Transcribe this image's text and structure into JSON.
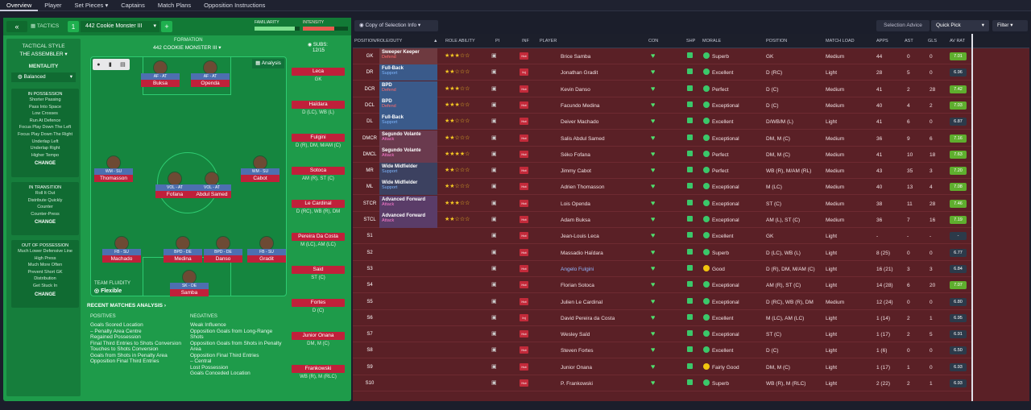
{
  "nav": {
    "items": [
      "Overview",
      "Player",
      "Set Pieces ▾",
      "Captains",
      "Match Plans",
      "Opposition Instructions"
    ]
  },
  "tactic": {
    "label": "TACTICS",
    "slot": "1",
    "name": "442 Cookie Monster III",
    "familiarity": "FAMILIARITY",
    "intensity": "INTENSITY",
    "formation_label": "FORMATION",
    "formation": "442 COOKIE MONSTER III",
    "subs_label": "SUBS:",
    "subs_count": "12/15",
    "analysis": "Analysis",
    "style_label": "TACTICAL STYLE",
    "style": "THE ASSEMBLER",
    "mentality_label": "MENTALITY",
    "mentality": "Balanced",
    "in_possession": {
      "title": "IN POSSESSION",
      "items": [
        "Shorter Passing",
        "Pass Into Space",
        "Low Crosses",
        "Run At Defence",
        "Focus Play Down The Left",
        "Focus Play Down The Right",
        "Underlap Left",
        "Underlap Right",
        "Higher Tempo"
      ],
      "change": "CHANGE"
    },
    "in_transition": {
      "title": "IN TRANSITION",
      "items": [
        "Roll It Out",
        "Distribute Quickly",
        "Counter",
        "Counter-Press"
      ],
      "change": "CHANGE"
    },
    "out_possession": {
      "title": "OUT OF POSSESSION",
      "items": [
        "Much Lower Defensive Line",
        "High Press",
        "Much More Often",
        "Prevent Short GK",
        "Distribution",
        "Get Stuck In"
      ],
      "change": "CHANGE"
    },
    "fluidity_label": "TEAM FLUIDITY",
    "fluidity": "Flexible"
  },
  "pitch_players": [
    {
      "role": "AF - AT",
      "name": "Buksa"
    },
    {
      "role": "AF - AT",
      "name": "Openda"
    },
    {
      "role": "WM - SU",
      "name": "Thomasson"
    },
    {
      "role": "VOL - AT",
      "name": "Fofana"
    },
    {
      "role": "VOL - AT",
      "name": "Abdul Samed"
    },
    {
      "role": "WM - SU",
      "name": "Cabot"
    },
    {
      "role": "FB - SU",
      "name": "Machado"
    },
    {
      "role": "BPD - DE",
      "name": "Medina"
    },
    {
      "role": "BPD - DE",
      "name": "Danso"
    },
    {
      "role": "FB - SU",
      "name": "Gradit"
    },
    {
      "role": "SK - DE",
      "name": "Samba"
    }
  ],
  "subs": [
    {
      "name": "Leca",
      "pos": "GK"
    },
    {
      "name": "Haïdara",
      "pos": "D (LC), WB (L)"
    },
    {
      "name": "Fulgini",
      "pos": "D (R), DM, M/AM (C)"
    },
    {
      "name": "Sotoca",
      "pos": "AM (R), ST (C)"
    },
    {
      "name": "Le Cardinal",
      "pos": "D (RC), WB (R), DM"
    },
    {
      "name": "Pereira Da Costa",
      "pos": "M (LC), AM (LC)"
    },
    {
      "name": "Said",
      "pos": "ST (C)"
    },
    {
      "name": "Fortes",
      "pos": "D (C)"
    },
    {
      "name": "Junior Onana",
      "pos": "DM, M (C)"
    },
    {
      "name": "Frankowski",
      "pos": "WB (R), M (RLC)"
    }
  ],
  "recent": {
    "title": "RECENT MATCHES ANALYSIS ›",
    "pos_label": "POSITIVES",
    "neg_label": "NEGATIVES",
    "positives": [
      "Goals Scored Location",
      "– Penalty Area Centre",
      "Regained Possession",
      "Final Third Entries to Shots Conversion",
      "Touches to Shots Conversion",
      "Goals from Shots in Penalty Area",
      "Opposition Final Third Entries"
    ],
    "negatives": [
      "Weak Influence",
      "Opposition Goals from Long-Range Shots",
      "Opposition Goals from Shots in Penalty Area",
      "Opposition Final Third Entries",
      "– Central",
      "Lost Possession",
      "Goals Conceded Location"
    ]
  },
  "toolbar": {
    "view": "Copy of Selection Info",
    "advice": "Selection Advice",
    "quick": "Quick Pick",
    "filter": "Filter"
  },
  "headers": {
    "pos": "POSITION/ROLE/DUTY",
    "ability": "ROLE ABILITY",
    "pi": "PI",
    "inf": "INF",
    "player": "PLAYER",
    "con": "CON",
    "shp": "SHP",
    "morale": "MORALE",
    "position": "POSITION",
    "load": "MATCH LOAD",
    "apps": "APPS",
    "ast": "AST",
    "gls": "GLS",
    "avrat": "AV RAT"
  },
  "rows": [
    {
      "slot": "GK",
      "role": "Sweeper Keeper",
      "duty": "Defend",
      "stars": 3,
      "player": "Brice Samba",
      "morale": "Superb",
      "position": "GK",
      "load": "Medium",
      "apps": "44",
      "ast": "0",
      "gls": "0",
      "rat": "7.01",
      "hot": "Hot"
    },
    {
      "slot": "DR",
      "role": "Full-Back",
      "duty": "Support",
      "stars": 2,
      "player": "Jonathan Gradit",
      "morale": "Excellent",
      "position": "D (RC)",
      "load": "Light",
      "apps": "28",
      "ast": "5",
      "gls": "0",
      "rat": "6.96",
      "hot": "Inj"
    },
    {
      "slot": "DCR",
      "role": "BPD",
      "duty": "Defend",
      "stars": 3,
      "player": "Kevin Danso",
      "morale": "Perfect",
      "position": "D (C)",
      "load": "Medium",
      "apps": "41",
      "ast": "2",
      "gls": "28",
      "rat": "7.42",
      "hot": "Hot"
    },
    {
      "slot": "DCL",
      "role": "BPD",
      "duty": "Defend",
      "stars": 3,
      "player": "Facundo Medina",
      "morale": "Exceptional",
      "position": "D (C)",
      "load": "Medium",
      "apps": "40",
      "ast": "4",
      "gls": "2",
      "rat": "7.03",
      "hot": "Hot"
    },
    {
      "slot": "DL",
      "role": "Full-Back",
      "duty": "Support",
      "stars": 2,
      "player": "Deiver Machado",
      "morale": "Excellent",
      "position": "D/WB/M (L)",
      "load": "Light",
      "apps": "41",
      "ast": "6",
      "gls": "0",
      "rat": "6.87",
      "hot": "Hot"
    },
    {
      "slot": "DMCR",
      "role": "Segundo Volante",
      "duty": "Attack",
      "stars": 2,
      "player": "Salis Abdul Samed",
      "morale": "Exceptional",
      "position": "DM, M (C)",
      "load": "Medium",
      "apps": "36",
      "ast": "9",
      "gls": "6",
      "rat": "7.16",
      "hot": "Hot"
    },
    {
      "slot": "DMCL",
      "role": "Segundo Volante",
      "duty": "Attack",
      "stars": 4,
      "player": "Séko Fofana",
      "morale": "Perfect",
      "position": "DM, M (C)",
      "load": "Medium",
      "apps": "41",
      "ast": "10",
      "gls": "18",
      "rat": "7.63",
      "hot": "Hot"
    },
    {
      "slot": "MR",
      "role": "Wide Midfielder",
      "duty": "Support",
      "stars": 2,
      "player": "Jimmy Cabot",
      "morale": "Perfect",
      "position": "WB (R), M/AM (RL)",
      "load": "Medium",
      "apps": "43",
      "ast": "35",
      "gls": "3",
      "rat": "7.20",
      "hot": "Hot"
    },
    {
      "slot": "ML",
      "role": "Wide Midfielder",
      "duty": "Support",
      "stars": 2,
      "player": "Adrien Thomasson",
      "morale": "Exceptional",
      "position": "M (LC)",
      "load": "Medium",
      "apps": "40",
      "ast": "13",
      "gls": "4",
      "rat": "7.08",
      "hot": "Hot"
    },
    {
      "slot": "STCR",
      "role": "Advanced Forward",
      "duty": "Attack",
      "stars": 3,
      "player": "Lois Openda",
      "morale": "Exceptional",
      "position": "ST (C)",
      "load": "Medium",
      "apps": "38",
      "ast": "11",
      "gls": "28",
      "rat": "7.46",
      "hot": "Hot"
    },
    {
      "slot": "STCL",
      "role": "Advanced Forward",
      "duty": "Attack",
      "stars": 2,
      "player": "Adam Buksa",
      "morale": "Exceptional",
      "position": "AM (L), ST (C)",
      "load": "Medium",
      "apps": "36",
      "ast": "7",
      "gls": "16",
      "rat": "7.19",
      "hot": "Hot"
    },
    {
      "slot": "S1",
      "role": "",
      "duty": "",
      "stars": 0,
      "player": "Jean-Louis Leca",
      "morale": "Excellent",
      "position": "GK",
      "load": "Light",
      "apps": "-",
      "ast": "-",
      "gls": "-",
      "rat": "-",
      "hot": "Hot"
    },
    {
      "slot": "S2",
      "role": "",
      "duty": "",
      "stars": 0,
      "player": "Massadio Haïdara",
      "morale": "Superb",
      "position": "D (LC), WB (L)",
      "load": "Light",
      "apps": "8 (25)",
      "ast": "0",
      "gls": "0",
      "rat": "6.77",
      "hot": "Hot"
    },
    {
      "slot": "S3",
      "role": "",
      "duty": "",
      "stars": 0,
      "player": "Angelo Fulgini",
      "morale": "Good",
      "position": "D (R), DM, M/AM (C)",
      "load": "Light",
      "apps": "16 (21)",
      "ast": "3",
      "gls": "3",
      "rat": "6.84",
      "hot": "Hot"
    },
    {
      "slot": "S4",
      "role": "",
      "duty": "",
      "stars": 0,
      "player": "Florian Sotoca",
      "morale": "Exceptional",
      "position": "AM (R), ST (C)",
      "load": "Light",
      "apps": "14 (28)",
      "ast": "6",
      "gls": "20",
      "rat": "7.07",
      "hot": "Hot"
    },
    {
      "slot": "S5",
      "role": "",
      "duty": "",
      "stars": 0,
      "player": "Julien Le Cardinal",
      "morale": "Exceptional",
      "position": "D (RC), WB (R), DM",
      "load": "Medium",
      "apps": "12 (24)",
      "ast": "0",
      "gls": "0",
      "rat": "6.80",
      "hot": "Hot"
    },
    {
      "slot": "S6",
      "role": "",
      "duty": "",
      "stars": 0,
      "player": "David Pereira da Costa",
      "morale": "Excellent",
      "position": "M (LC), AM (LC)",
      "load": "Light",
      "apps": "1 (14)",
      "ast": "2",
      "gls": "1",
      "rat": "6.95",
      "hot": "Inj"
    },
    {
      "slot": "S7",
      "role": "",
      "duty": "",
      "stars": 0,
      "player": "Wesley Saïd",
      "morale": "Exceptional",
      "position": "ST (C)",
      "load": "Light",
      "apps": "1 (17)",
      "ast": "2",
      "gls": "5",
      "rat": "6.91",
      "hot": "Hot"
    },
    {
      "slot": "S8",
      "role": "",
      "duty": "",
      "stars": 0,
      "player": "Steven Fortes",
      "morale": "Excellent",
      "position": "D (C)",
      "load": "Light",
      "apps": "1 (6)",
      "ast": "0",
      "gls": "0",
      "rat": "6.50",
      "hot": "Hot"
    },
    {
      "slot": "S9",
      "role": "",
      "duty": "",
      "stars": 0,
      "player": "Junior Onana",
      "morale": "Fairly Good",
      "position": "DM, M (C)",
      "load": "Light",
      "apps": "1 (17)",
      "ast": "1",
      "gls": "0",
      "rat": "6.93",
      "hot": "Hot"
    },
    {
      "slot": "S10",
      "role": "",
      "duty": "",
      "stars": 0,
      "player": "P. Frankowski",
      "morale": "Superb",
      "position": "WB (R), M (RLC)",
      "load": "Light",
      "apps": "2 (22)",
      "ast": "2",
      "gls": "1",
      "rat": "6.93",
      "hot": "Hot"
    }
  ]
}
